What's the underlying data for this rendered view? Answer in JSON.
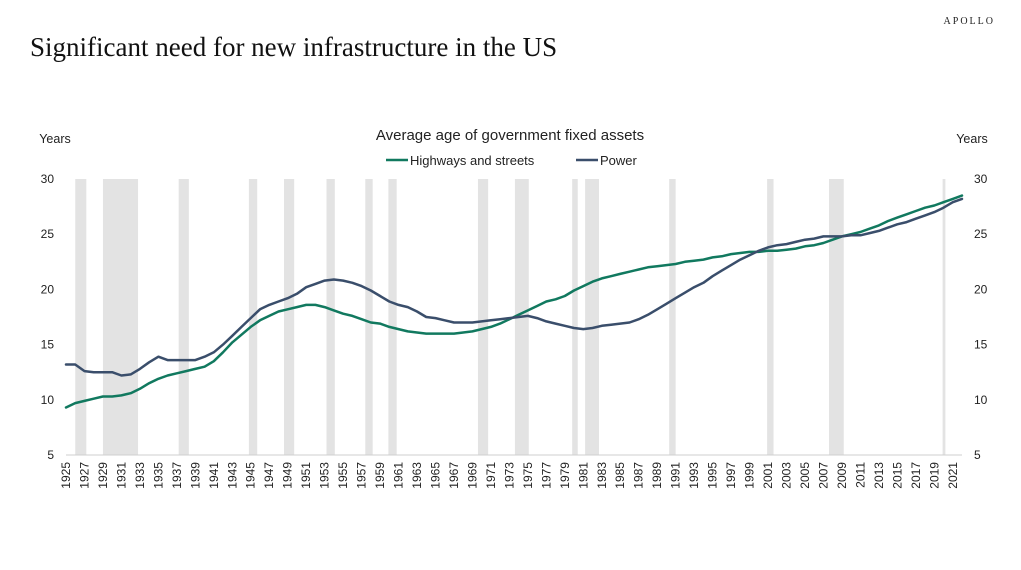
{
  "brand": "APOLLO",
  "page_title": "Significant need for new infrastructure in the US",
  "colors": {
    "highways": "#11795f",
    "power": "#3a4e6b",
    "recession": "#e3e3e3"
  },
  "chart_data": {
    "type": "line",
    "title": "Average age of government fixed assets",
    "ylabel_left": "Years",
    "ylabel_right": "Years",
    "ylim": [
      5,
      30
    ],
    "yticks": [
      5,
      10,
      15,
      20,
      25,
      30
    ],
    "xlim": [
      1925,
      2022
    ],
    "xticks": [
      "1925",
      "1927",
      "1929",
      "1931",
      "1933",
      "1935",
      "1937",
      "1939",
      "1941",
      "1943",
      "1945",
      "1947",
      "1949",
      "1951",
      "1953",
      "1955",
      "1957",
      "1959",
      "1961",
      "1963",
      "1965",
      "1967",
      "1969",
      "1971",
      "1973",
      "1975",
      "1977",
      "1979",
      "1981",
      "1983",
      "1985",
      "1987",
      "1989",
      "1991",
      "1993",
      "1995",
      "1997",
      "1999",
      "2001",
      "2003",
      "2005",
      "2007",
      "2009",
      "2011",
      "2013",
      "2015",
      "2017",
      "2019",
      "2021"
    ],
    "legend": "top-center",
    "grid": false,
    "recessions": [
      [
        1926,
        1927.2
      ],
      [
        1929,
        1932.8
      ],
      [
        1937.2,
        1938.3
      ],
      [
        1944.8,
        1945.7
      ],
      [
        1948.6,
        1949.7
      ],
      [
        1953.2,
        1954.1
      ],
      [
        1957.4,
        1958.2
      ],
      [
        1959.9,
        1960.8
      ],
      [
        1969.6,
        1970.7
      ],
      [
        1973.6,
        1975.1
      ],
      [
        1979.8,
        1980.4
      ],
      [
        1981.2,
        1982.7
      ],
      [
        1990.3,
        1991.0
      ],
      [
        2000.9,
        2001.6
      ],
      [
        2007.6,
        2009.2
      ],
      [
        2019.9,
        2020.2
      ]
    ],
    "x": [
      1925,
      1926,
      1927,
      1928,
      1929,
      1930,
      1931,
      1932,
      1933,
      1934,
      1935,
      1936,
      1937,
      1938,
      1939,
      1940,
      1941,
      1942,
      1943,
      1944,
      1945,
      1946,
      1947,
      1948,
      1949,
      1950,
      1951,
      1952,
      1953,
      1954,
      1955,
      1956,
      1957,
      1958,
      1959,
      1960,
      1961,
      1962,
      1963,
      1964,
      1965,
      1966,
      1967,
      1968,
      1969,
      1970,
      1971,
      1972,
      1973,
      1974,
      1975,
      1976,
      1977,
      1978,
      1979,
      1980,
      1981,
      1982,
      1983,
      1984,
      1985,
      1986,
      1987,
      1988,
      1989,
      1990,
      1991,
      1992,
      1993,
      1994,
      1995,
      1996,
      1997,
      1998,
      1999,
      2000,
      2001,
      2002,
      2003,
      2004,
      2005,
      2006,
      2007,
      2008,
      2009,
      2010,
      2011,
      2012,
      2013,
      2014,
      2015,
      2016,
      2017,
      2018,
      2019,
      2020,
      2021,
      2022
    ],
    "series": [
      {
        "name": "Highways and streets",
        "values": [
          9.3,
          9.7,
          9.9,
          10.1,
          10.3,
          10.3,
          10.4,
          10.6,
          11.0,
          11.5,
          11.9,
          12.2,
          12.4,
          12.6,
          12.8,
          13.0,
          13.5,
          14.3,
          15.2,
          15.9,
          16.6,
          17.2,
          17.6,
          18.0,
          18.2,
          18.4,
          18.6,
          18.6,
          18.4,
          18.1,
          17.8,
          17.6,
          17.3,
          17.0,
          16.9,
          16.6,
          16.4,
          16.2,
          16.1,
          16.0,
          16.0,
          16.0,
          16.0,
          16.1,
          16.2,
          16.4,
          16.6,
          16.9,
          17.3,
          17.7,
          18.1,
          18.5,
          18.9,
          19.1,
          19.4,
          19.9,
          20.3,
          20.7,
          21.0,
          21.2,
          21.4,
          21.6,
          21.8,
          22.0,
          22.1,
          22.2,
          22.3,
          22.5,
          22.6,
          22.7,
          22.9,
          23.0,
          23.2,
          23.3,
          23.4,
          23.4,
          23.5,
          23.5,
          23.6,
          23.7,
          23.9,
          24.0,
          24.2,
          24.5,
          24.8,
          25.0,
          25.2,
          25.5,
          25.8,
          26.2,
          26.5,
          26.8,
          27.1,
          27.4,
          27.6,
          27.9,
          28.2,
          28.5
        ]
      },
      {
        "name": "Power",
        "values": [
          13.2,
          13.2,
          12.6,
          12.5,
          12.5,
          12.5,
          12.2,
          12.3,
          12.8,
          13.4,
          13.9,
          13.6,
          13.6,
          13.6,
          13.6,
          13.9,
          14.3,
          15.0,
          15.8,
          16.6,
          17.4,
          18.2,
          18.6,
          18.9,
          19.2,
          19.6,
          20.2,
          20.5,
          20.8,
          20.9,
          20.8,
          20.6,
          20.3,
          19.9,
          19.4,
          18.9,
          18.6,
          18.4,
          18.0,
          17.5,
          17.4,
          17.2,
          17.0,
          17.0,
          17.0,
          17.1,
          17.2,
          17.3,
          17.4,
          17.5,
          17.6,
          17.4,
          17.1,
          16.9,
          16.7,
          16.5,
          16.4,
          16.5,
          16.7,
          16.8,
          16.9,
          17.0,
          17.3,
          17.7,
          18.2,
          18.7,
          19.2,
          19.7,
          20.2,
          20.6,
          21.2,
          21.7,
          22.2,
          22.7,
          23.1,
          23.5,
          23.8,
          24.0,
          24.1,
          24.3,
          24.5,
          24.6,
          24.8,
          24.8,
          24.8,
          24.9,
          24.9,
          25.1,
          25.3,
          25.6,
          25.9,
          26.1,
          26.4,
          26.7,
          27.0,
          27.4,
          27.9,
          28.2
        ]
      }
    ]
  }
}
